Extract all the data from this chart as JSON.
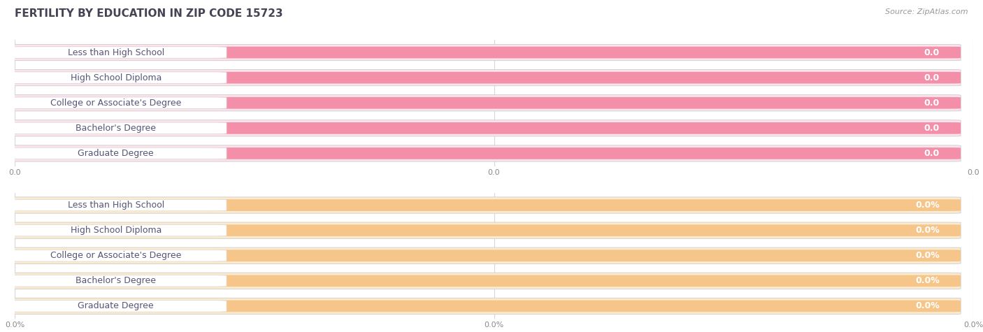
{
  "title": "FERTILITY BY EDUCATION IN ZIP CODE 15723",
  "source": "Source: ZipAtlas.com",
  "categories": [
    "Less than High School",
    "High School Diploma",
    "College or Associate's Degree",
    "Bachelor's Degree",
    "Graduate Degree"
  ],
  "values_top": [
    0.0,
    0.0,
    0.0,
    0.0,
    0.0
  ],
  "values_bottom": [
    0.0,
    0.0,
    0.0,
    0.0,
    0.0
  ],
  "bar_color_top": "#F48FAA",
  "bar_color_bottom": "#F5C589",
  "bg_color": "#ffffff",
  "grid_color": "#d8d8d8",
  "bar_bg_color_top": "#fce4ec",
  "bar_bg_color_bottom": "#fdebd0",
  "white_label_bg": "#ffffff",
  "label_text_color": "#555577",
  "value_color_top": "#F48FAA",
  "value_color_bottom": "#F5C589",
  "axis_tick_color": "#888888",
  "title_color": "#444455",
  "source_color": "#999999",
  "title_fontsize": 11,
  "source_fontsize": 8,
  "label_fontsize": 9,
  "value_fontsize": 9,
  "axis_fontsize": 8
}
